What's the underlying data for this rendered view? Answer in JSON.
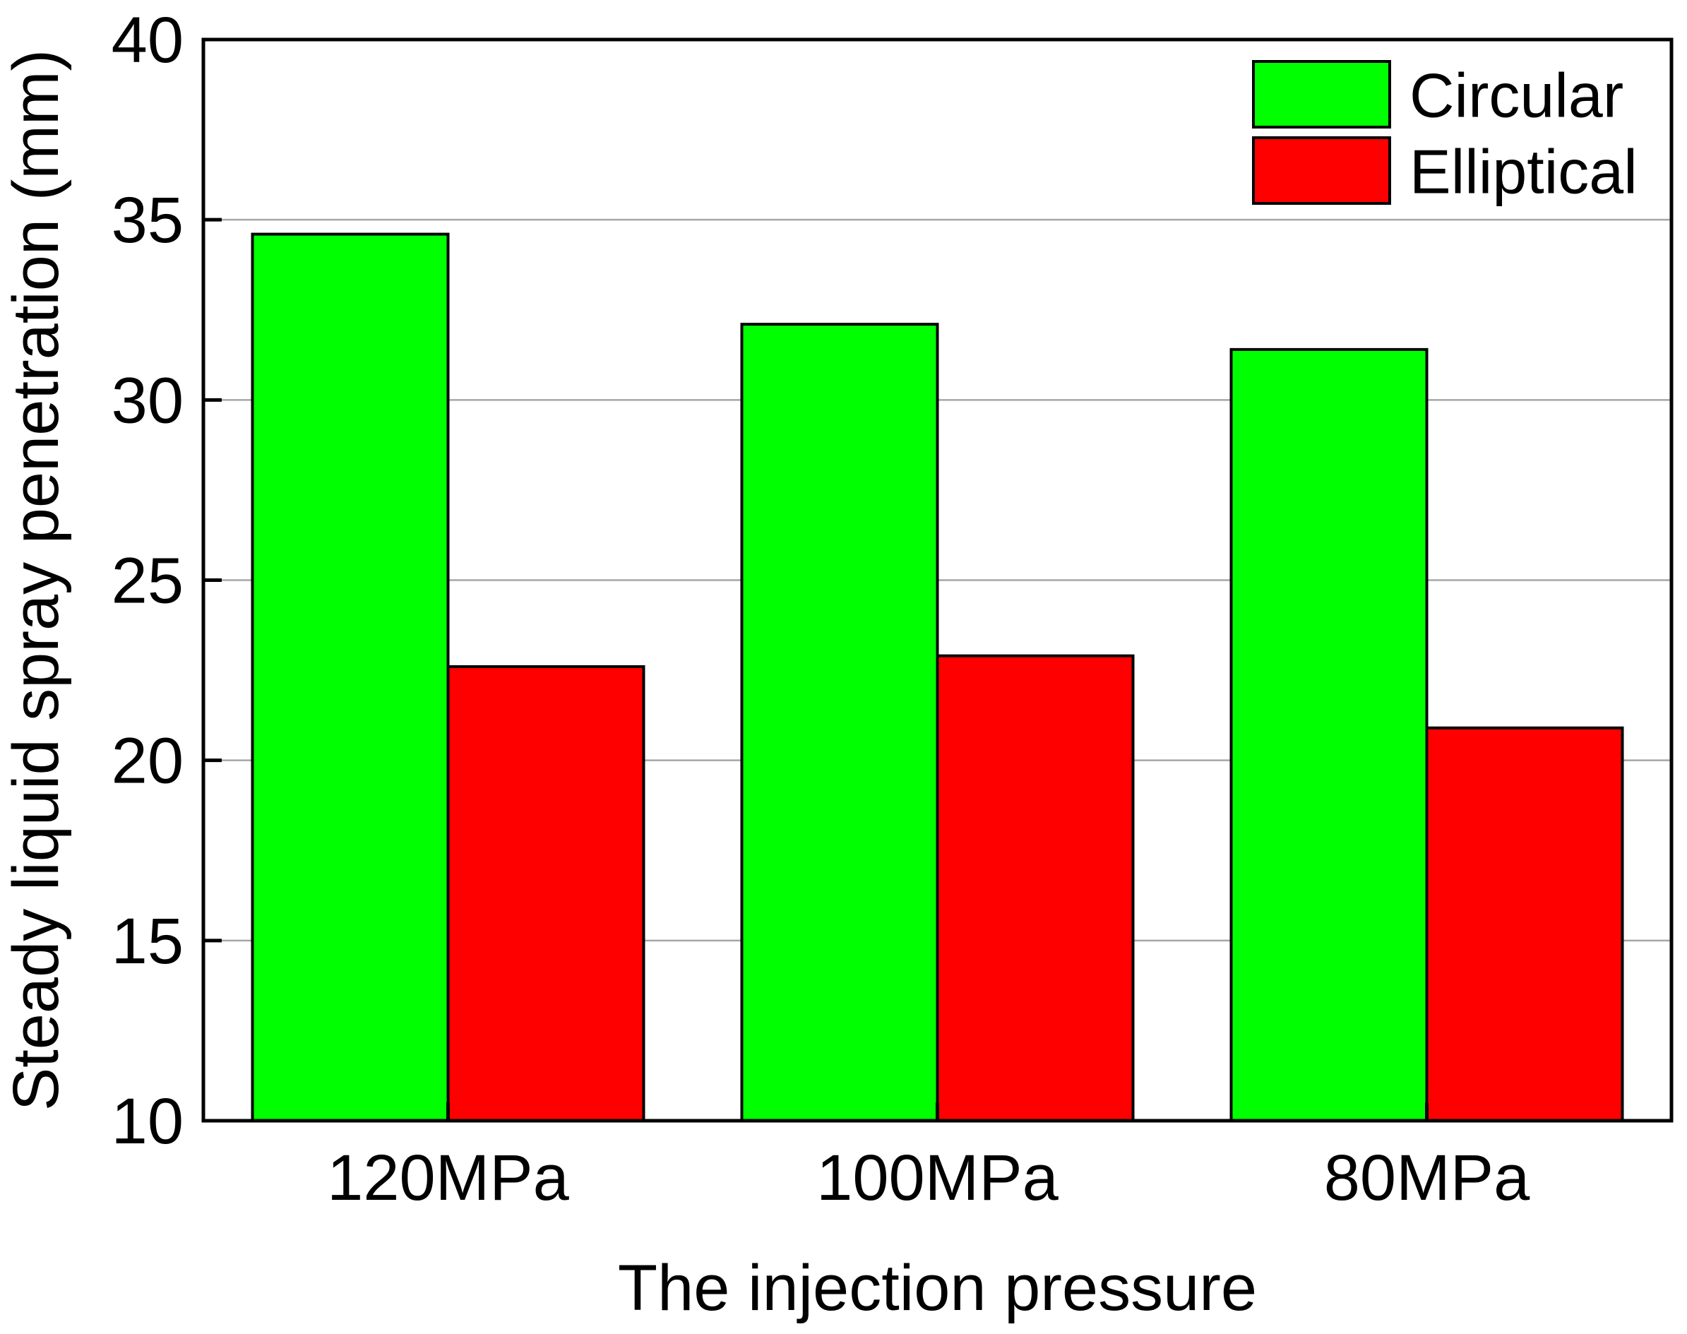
{
  "chart_data": {
    "type": "bar",
    "title": "",
    "xlabel": "The injection pressure",
    "ylabel": "Steady liquid spray penetration (mm)",
    "categories": [
      "120MPa",
      "100MPa",
      "80MPa"
    ],
    "series": [
      {
        "name": "Circular",
        "color": "#00ff00",
        "values": [
          34.6,
          32.1,
          31.4
        ]
      },
      {
        "name": "Elliptical",
        "color": "#ff0000",
        "values": [
          22.6,
          22.9,
          20.9
        ]
      }
    ],
    "ylim": [
      10,
      40
    ],
    "yticks": [
      "10",
      "15",
      "20",
      "25",
      "30",
      "35",
      "40"
    ],
    "grid": "horizontal",
    "legend_position": "top-right"
  }
}
